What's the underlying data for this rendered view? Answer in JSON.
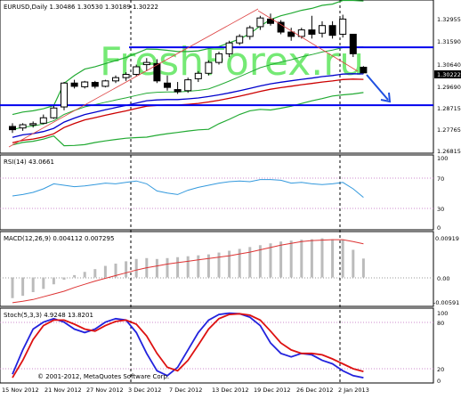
{
  "main_chart": {
    "header": "EURUSD,Daily  1.30486 1.30530 1.30189 1.30222",
    "watermark": "FreshForex.ru",
    "price_ticks": [
      "1.32955",
      "1.32565",
      "1.31590",
      "1.30640",
      "1.29690",
      "1.28715",
      "1.27765",
      "1.26815"
    ],
    "current_price_label": "1.30222",
    "colors": {
      "bull_candle": "#ffffff",
      "bear_candle": "#000000",
      "bollinger": "#22aa33",
      "ma_blue": "#0000cc",
      "ma_red": "#cc0000",
      "level_line": "#0000ee",
      "arrow": "#1f4fe0",
      "watermark": "#22dd22"
    }
  },
  "rsi_panel": {
    "header": "RSI(14) 43.0661",
    "ticks": [
      "100",
      "70",
      "30",
      "0"
    ],
    "color": "#3399dd"
  },
  "macd_panel": {
    "header": "MACD(12,26,9) 0.004112 0.007295",
    "ticks": [
      "0.00919",
      "0.00",
      "-0.00591"
    ],
    "signal_color": "#dd3333",
    "hist_color": "#bbbbbb"
  },
  "stoch_panel": {
    "header": "Stoch(5,3,3) 4.9248 13.8201",
    "ticks": [
      "100",
      "80",
      "20",
      "0"
    ],
    "main_color": "#2222dd",
    "signal_color": "#dd1111"
  },
  "copyright": "© 2001-2012, MetaQuotes Software Corp.",
  "date_axis": [
    "15 Nov 2012",
    "21 Nov 2012",
    "27 Nov 2012",
    "3 Dec 2012",
    "7 Dec 2012",
    "13 Dec 2012",
    "19 Dec 2012",
    "26 Dec 2012",
    "2 Jan 2013"
  ],
  "chart_data": [
    {
      "type": "candlestick",
      "title": "EURUSD,Daily",
      "ohlc_last": {
        "open": 1.30486,
        "high": 1.3053,
        "low": 1.30189,
        "close": 1.30222
      },
      "y_ticks": [
        1.32955,
        1.32565,
        1.3159,
        1.3064,
        1.2969,
        1.28715,
        1.27765,
        1.26815
      ],
      "x_ticks": [
        "15 Nov 2012",
        "21 Nov 2012",
        "27 Nov 2012",
        "3 Dec 2012",
        "7 Dec 2012",
        "13 Dec 2012",
        "19 Dec 2012",
        "26 Dec 2012",
        "2 Jan 2013"
      ],
      "series": [
        {
          "name": "candles",
          "values": [
            [
              1.2775,
              1.279,
              1.2745,
              1.276
            ],
            [
              1.2768,
              1.279,
              1.2755,
              1.2783
            ],
            [
              1.2782,
              1.2798,
              1.277,
              1.2788
            ],
            [
              1.279,
              1.283,
              1.2785,
              1.2815
            ],
            [
              1.2815,
              1.287,
              1.281,
              1.286
            ],
            [
              1.2865,
              1.298,
              1.285,
              1.2975
            ],
            [
              1.2975,
              1.299,
              1.295,
              1.296
            ],
            [
              1.2958,
              1.2985,
              1.295,
              1.298
            ],
            [
              1.2978,
              1.2985,
              1.295,
              1.296
            ],
            [
              1.296,
              1.299,
              1.2955,
              1.2985
            ],
            [
              1.2985,
              1.301,
              1.2975,
              1.3
            ],
            [
              1.3,
              1.3025,
              1.2985,
              1.3015
            ],
            [
              1.3015,
              1.306,
              1.3005,
              1.305
            ],
            [
              1.306,
              1.309,
              1.303,
              1.307
            ],
            [
              1.3065,
              1.3085,
              1.2975,
              1.2985
            ],
            [
              1.2975,
              1.301,
              1.294,
              1.2955
            ],
            [
              1.2945,
              1.298,
              1.2925,
              1.2935
            ],
            [
              1.294,
              1.3,
              1.293,
              1.299
            ],
            [
              1.2995,
              1.303,
              1.298,
              1.302
            ],
            [
              1.302,
              1.308,
              1.301,
              1.307
            ],
            [
              1.307,
              1.312,
              1.306,
              1.311
            ],
            [
              1.311,
              1.317,
              1.3095,
              1.316
            ],
            [
              1.316,
              1.32,
              1.315,
              1.319
            ],
            [
              1.319,
              1.324,
              1.3175,
              1.323
            ],
            [
              1.3235,
              1.3285,
              1.322,
              1.3275
            ],
            [
              1.327,
              1.3295,
              1.324,
              1.325
            ],
            [
              1.3255,
              1.3265,
              1.32,
              1.321
            ],
            [
              1.321,
              1.323,
              1.317,
              1.319
            ],
            [
              1.319,
              1.323,
              1.318,
              1.322
            ],
            [
              1.322,
              1.3285,
              1.318,
              1.32
            ],
            [
              1.3205,
              1.326,
              1.3185,
              1.324
            ],
            [
              1.324,
              1.326,
              1.318,
              1.3195
            ],
            [
              1.32,
              1.329,
              1.3185,
              1.327
            ],
            [
              1.32,
              1.316,
              1.3095,
              1.311
            ],
            [
              1.3048,
              1.3053,
              1.3019,
              1.3022
            ]
          ]
        },
        {
          "name": "level_1.3140",
          "values": [
            1.314
          ]
        },
        {
          "name": "level_1.2873",
          "values": [
            1.2873
          ]
        }
      ]
    },
    {
      "type": "line",
      "title": "RSI(14) 43.0661",
      "ylim": [
        0,
        100
      ],
      "y_ticks": [
        100,
        70,
        30,
        0
      ],
      "series": [
        {
          "name": "RSI",
          "values": [
            45,
            47,
            50,
            55,
            62,
            60,
            58,
            59,
            61,
            63,
            62,
            64,
            66,
            62,
            52,
            49,
            47,
            53,
            57,
            60,
            63,
            65,
            66,
            65,
            68,
            68,
            67,
            63,
            64,
            62,
            61,
            62,
            64,
            55,
            43
          ]
        }
      ]
    },
    {
      "type": "bar",
      "title": "MACD(12,26,9) 0.004112 0.007295",
      "ylim": [
        -0.00591,
        0.00919
      ],
      "y_ticks": [
        0.00919,
        0.0,
        -0.00591
      ],
      "series": [
        {
          "name": "histogram",
          "values": [
            -0.0045,
            -0.004,
            -0.0032,
            -0.0025,
            -0.0015,
            -0.0005,
            0.0005,
            0.0012,
            0.0018,
            0.0025,
            0.003,
            0.0035,
            0.004,
            0.0042,
            0.004,
            0.0042,
            0.0044,
            0.0046,
            0.0048,
            0.005,
            0.0054,
            0.0058,
            0.0062,
            0.0066,
            0.007,
            0.0074,
            0.0078,
            0.008,
            0.0082,
            0.0083,
            0.0085,
            0.0083,
            0.0082,
            0.006,
            0.0041
          ]
        },
        {
          "name": "signal",
          "values": [
            -0.0055,
            -0.0052,
            -0.0048,
            -0.0042,
            -0.0036,
            -0.003,
            -0.0022,
            -0.0015,
            -0.0008,
            -0.0002,
            0.0004,
            0.001,
            0.0016,
            0.0021,
            0.0025,
            0.0029,
            0.0032,
            0.0035,
            0.0038,
            0.0041,
            0.0044,
            0.0047,
            0.0051,
            0.0055,
            0.006,
            0.0065,
            0.007,
            0.0074,
            0.0078,
            0.008,
            0.0081,
            0.0082,
            0.0082,
            0.0078,
            0.0073
          ]
        }
      ]
    },
    {
      "type": "line",
      "title": "Stoch(5,3,3) 4.9248 13.8201",
      "ylim": [
        0,
        100
      ],
      "y_ticks": [
        100,
        80,
        20,
        0
      ],
      "series": [
        {
          "name": "main",
          "values": [
            10,
            45,
            75,
            85,
            90,
            85,
            75,
            70,
            75,
            85,
            90,
            88,
            70,
            40,
            15,
            8,
            20,
            45,
            70,
            88,
            96,
            98,
            97,
            92,
            80,
            55,
            40,
            35,
            40,
            38,
            30,
            25,
            15,
            8,
            5
          ]
        },
        {
          "name": "signal",
          "values": [
            5,
            30,
            60,
            80,
            88,
            88,
            82,
            75,
            72,
            80,
            86,
            88,
            82,
            65,
            40,
            20,
            15,
            30,
            52,
            75,
            90,
            96,
            97,
            95,
            88,
            72,
            55,
            45,
            40,
            40,
            38,
            32,
            25,
            18,
            14
          ]
        }
      ]
    }
  ]
}
